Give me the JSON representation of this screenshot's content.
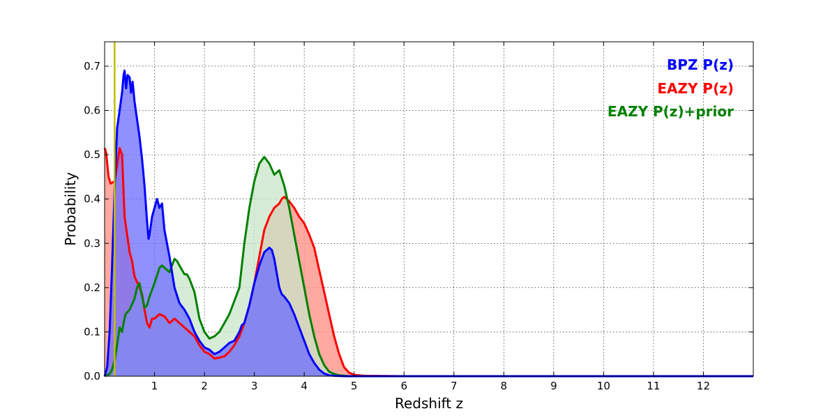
{
  "chart_data": {
    "type": "area",
    "xlabel": "Redshift z",
    "ylabel": "Probability",
    "xlim": [
      0,
      13
    ],
    "ylim": [
      0,
      0.755
    ],
    "xticks": [
      1,
      2,
      3,
      4,
      5,
      6,
      7,
      8,
      9,
      10,
      11,
      12
    ],
    "yticks": [
      0.0,
      0.1,
      0.2,
      0.3,
      0.4,
      0.5,
      0.6,
      0.7
    ],
    "ytick_labels": [
      "0.0",
      "0.1",
      "0.2",
      "0.3",
      "0.4",
      "0.5",
      "0.6",
      "0.7"
    ],
    "grid": true,
    "legend_placement": "top-right",
    "vline": {
      "x": 0.2,
      "color": "#bfbf00"
    },
    "series": [
      {
        "name": "EAZY P(z)",
        "color": "#ff0000",
        "fill": "#ff8c82",
        "x": [
          0.0,
          0.03,
          0.08,
          0.12,
          0.2,
          0.25,
          0.3,
          0.35,
          0.4,
          0.45,
          0.5,
          0.55,
          0.6,
          0.7,
          0.75,
          0.8,
          0.85,
          0.9,
          0.95,
          1.0,
          1.1,
          1.2,
          1.3,
          1.4,
          1.5,
          1.6,
          1.7,
          1.8,
          1.9,
          2.0,
          2.1,
          2.2,
          2.3,
          2.4,
          2.5,
          2.6,
          2.7,
          2.8,
          2.9,
          3.0,
          3.1,
          3.2,
          3.3,
          3.4,
          3.5,
          3.55,
          3.6,
          3.7,
          3.8,
          3.9,
          4.0,
          4.1,
          4.2,
          4.3,
          4.4,
          4.5,
          4.6,
          4.7,
          4.8,
          4.9,
          5.0,
          5.2,
          6.0,
          13.0
        ],
        "y": [
          0.515,
          0.505,
          0.45,
          0.435,
          0.44,
          0.475,
          0.515,
          0.5,
          0.36,
          0.32,
          0.28,
          0.26,
          0.225,
          0.2,
          0.185,
          0.15,
          0.12,
          0.11,
          0.13,
          0.13,
          0.14,
          0.135,
          0.12,
          0.13,
          0.12,
          0.11,
          0.1,
          0.09,
          0.07,
          0.055,
          0.05,
          0.04,
          0.042,
          0.045,
          0.055,
          0.07,
          0.09,
          0.12,
          0.16,
          0.21,
          0.27,
          0.33,
          0.36,
          0.38,
          0.39,
          0.4,
          0.405,
          0.395,
          0.38,
          0.36,
          0.345,
          0.32,
          0.29,
          0.24,
          0.19,
          0.14,
          0.09,
          0.05,
          0.02,
          0.008,
          0.003,
          0.001,
          0.0,
          0.0
        ]
      },
      {
        "name": "EAZY P(z)+prior",
        "color": "#008000",
        "fill": "#c8e6c8",
        "x": [
          0.0,
          0.1,
          0.15,
          0.2,
          0.25,
          0.3,
          0.35,
          0.38,
          0.42,
          0.5,
          0.6,
          0.65,
          0.7,
          0.75,
          0.8,
          0.85,
          0.9,
          1.0,
          1.1,
          1.15,
          1.2,
          1.3,
          1.35,
          1.4,
          1.45,
          1.5,
          1.6,
          1.65,
          1.7,
          1.8,
          1.9,
          2.0,
          2.1,
          2.2,
          2.3,
          2.4,
          2.5,
          2.6,
          2.7,
          2.8,
          2.9,
          3.0,
          3.1,
          3.2,
          3.3,
          3.4,
          3.5,
          3.6,
          3.7,
          3.8,
          3.9,
          4.0,
          4.1,
          4.2,
          4.3,
          4.4,
          4.5,
          4.6,
          4.7,
          4.8,
          4.9,
          5.0,
          5.5,
          13.0
        ],
        "y": [
          0.0,
          0.005,
          0.015,
          0.035,
          0.07,
          0.11,
          0.1,
          0.12,
          0.14,
          0.15,
          0.175,
          0.2,
          0.21,
          0.18,
          0.155,
          0.16,
          0.18,
          0.21,
          0.245,
          0.25,
          0.245,
          0.235,
          0.25,
          0.265,
          0.26,
          0.25,
          0.23,
          0.23,
          0.22,
          0.19,
          0.13,
          0.1,
          0.085,
          0.09,
          0.1,
          0.12,
          0.14,
          0.17,
          0.2,
          0.3,
          0.38,
          0.44,
          0.48,
          0.495,
          0.48,
          0.455,
          0.465,
          0.43,
          0.38,
          0.32,
          0.26,
          0.2,
          0.14,
          0.09,
          0.05,
          0.025,
          0.01,
          0.005,
          0.002,
          0.001,
          0.0,
          0.0,
          0.0,
          0.0
        ]
      },
      {
        "name": "BPZ P(z)",
        "color": "#0000ff",
        "fill": "#6b6bff",
        "x": [
          0.0,
          0.05,
          0.1,
          0.15,
          0.2,
          0.25,
          0.3,
          0.35,
          0.38,
          0.4,
          0.43,
          0.46,
          0.5,
          0.53,
          0.56,
          0.6,
          0.65,
          0.7,
          0.75,
          0.8,
          0.85,
          0.88,
          0.9,
          0.95,
          1.0,
          1.05,
          1.1,
          1.15,
          1.2,
          1.25,
          1.3,
          1.4,
          1.5,
          1.6,
          1.7,
          1.8,
          1.9,
          2.0,
          2.1,
          2.2,
          2.3,
          2.4,
          2.5,
          2.6,
          2.7,
          2.75,
          2.8,
          2.9,
          3.0,
          3.1,
          3.2,
          3.3,
          3.35,
          3.4,
          3.5,
          3.55,
          3.6,
          3.7,
          3.8,
          3.9,
          4.0,
          4.1,
          4.2,
          4.3,
          4.4,
          4.5,
          4.6,
          4.8,
          5.0,
          13.0
        ],
        "y": [
          0.0,
          0.02,
          0.1,
          0.25,
          0.42,
          0.56,
          0.6,
          0.64,
          0.68,
          0.69,
          0.65,
          0.68,
          0.675,
          0.64,
          0.665,
          0.62,
          0.58,
          0.54,
          0.49,
          0.43,
          0.35,
          0.31,
          0.32,
          0.36,
          0.38,
          0.4,
          0.38,
          0.39,
          0.33,
          0.3,
          0.27,
          0.2,
          0.165,
          0.15,
          0.13,
          0.1,
          0.08,
          0.065,
          0.06,
          0.05,
          0.055,
          0.065,
          0.075,
          0.08,
          0.1,
          0.115,
          0.12,
          0.16,
          0.21,
          0.25,
          0.28,
          0.29,
          0.285,
          0.265,
          0.2,
          0.185,
          0.18,
          0.165,
          0.14,
          0.11,
          0.08,
          0.05,
          0.03,
          0.015,
          0.006,
          0.002,
          0.001,
          0.0,
          0.0,
          0.0
        ]
      }
    ],
    "legend": [
      {
        "label": "BPZ P(z)",
        "color": "#0000ff"
      },
      {
        "label": "EAZY P(z)",
        "color": "#ff0000"
      },
      {
        "label": "EAZY P(z)+prior",
        "color": "#008000"
      }
    ]
  }
}
